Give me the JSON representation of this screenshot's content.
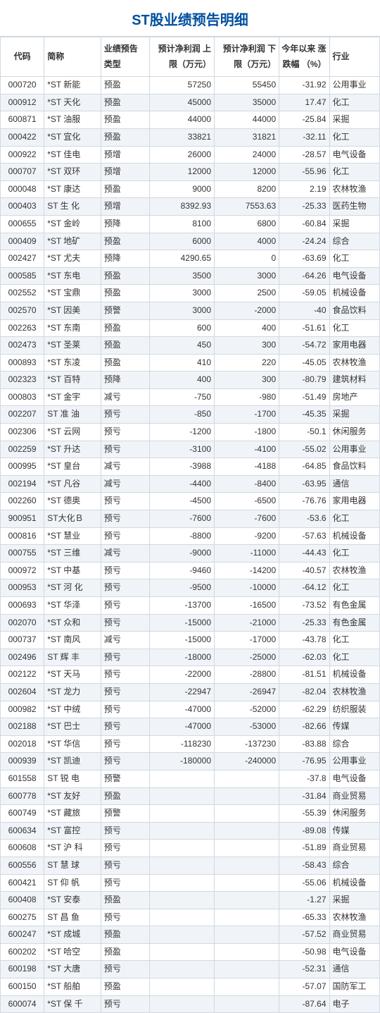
{
  "title": "ST股业绩预告明细",
  "headers": {
    "code": "代码",
    "name": "简称",
    "type": "业绩预告\n类型",
    "upper": "预计净利润\n上限（万元）",
    "lower": "预计净利润\n下限（万元）",
    "chg": "今年以来\n涨跌幅\n（%）",
    "industry": "行业"
  },
  "rows": [
    {
      "code": "000720",
      "name": "*ST 新能",
      "type": "预盈",
      "upper": "57250",
      "lower": "55450",
      "chg": "-31.92",
      "ind": "公用事业"
    },
    {
      "code": "000912",
      "name": "*ST 天化",
      "type": "预盈",
      "upper": "45000",
      "lower": "35000",
      "chg": "17.47",
      "ind": "化工"
    },
    {
      "code": "600871",
      "name": "*ST 油服",
      "type": "预盈",
      "upper": "44000",
      "lower": "44000",
      "chg": "-25.84",
      "ind": "采掘"
    },
    {
      "code": "000422",
      "name": "*ST 宜化",
      "type": "预盈",
      "upper": "33821",
      "lower": "31821",
      "chg": "-32.11",
      "ind": "化工"
    },
    {
      "code": "000922",
      "name": "*ST 佳电",
      "type": "预增",
      "upper": "26000",
      "lower": "24000",
      "chg": "-28.57",
      "ind": "电气设备"
    },
    {
      "code": "000707",
      "name": "*ST 双环",
      "type": "预增",
      "upper": "12000",
      "lower": "12000",
      "chg": "-55.96",
      "ind": "化工"
    },
    {
      "code": "000048",
      "name": "*ST 康达",
      "type": "预盈",
      "upper": "9000",
      "lower": "8200",
      "chg": "2.19",
      "ind": "农林牧渔"
    },
    {
      "code": "000403",
      "name": "ST 生 化",
      "type": "预增",
      "upper": "8392.93",
      "lower": "7553.63",
      "chg": "-25.33",
      "ind": "医药生物"
    },
    {
      "code": "000655",
      "name": "*ST 金岭",
      "type": "预降",
      "upper": "8100",
      "lower": "6800",
      "chg": "-60.84",
      "ind": "采掘"
    },
    {
      "code": "000409",
      "name": "*ST 地矿",
      "type": "预盈",
      "upper": "6000",
      "lower": "4000",
      "chg": "-24.24",
      "ind": "综合"
    },
    {
      "code": "002427",
      "name": "*ST 尤夫",
      "type": "预降",
      "upper": "4290.65",
      "lower": "0",
      "chg": "-63.69",
      "ind": "化工"
    },
    {
      "code": "000585",
      "name": "*ST 东电",
      "type": "预盈",
      "upper": "3500",
      "lower": "3000",
      "chg": "-64.26",
      "ind": "电气设备"
    },
    {
      "code": "002552",
      "name": "*ST 宝鼎",
      "type": "预盈",
      "upper": "3000",
      "lower": "2500",
      "chg": "-59.05",
      "ind": "机械设备"
    },
    {
      "code": "002570",
      "name": "*ST 因美",
      "type": "预警",
      "upper": "3000",
      "lower": "-2000",
      "chg": "-40",
      "ind": "食品饮料"
    },
    {
      "code": "002263",
      "name": "*ST 东南",
      "type": "预盈",
      "upper": "600",
      "lower": "400",
      "chg": "-51.61",
      "ind": "化工"
    },
    {
      "code": "002473",
      "name": "*ST 圣莱",
      "type": "预盈",
      "upper": "450",
      "lower": "300",
      "chg": "-54.72",
      "ind": "家用电器"
    },
    {
      "code": "000893",
      "name": "*ST 东凌",
      "type": "预盈",
      "upper": "410",
      "lower": "220",
      "chg": "-45.05",
      "ind": "农林牧渔"
    },
    {
      "code": "002323",
      "name": "*ST 百特",
      "type": "预降",
      "upper": "400",
      "lower": "300",
      "chg": "-80.79",
      "ind": "建筑材料"
    },
    {
      "code": "000803",
      "name": "*ST 金宇",
      "type": "减亏",
      "upper": "-750",
      "lower": "-980",
      "chg": "-51.49",
      "ind": "房地产"
    },
    {
      "code": "002207",
      "name": "ST 准 油",
      "type": "预亏",
      "upper": "-850",
      "lower": "-1700",
      "chg": "-45.35",
      "ind": "采掘"
    },
    {
      "code": "002306",
      "name": "*ST 云网",
      "type": "预亏",
      "upper": "-1200",
      "lower": "-1800",
      "chg": "-50.1",
      "ind": "休闲服务"
    },
    {
      "code": "002259",
      "name": "*ST 升达",
      "type": "预亏",
      "upper": "-3100",
      "lower": "-4100",
      "chg": "-55.02",
      "ind": "公用事业"
    },
    {
      "code": "000995",
      "name": "*ST 皇台",
      "type": "减亏",
      "upper": "-3988",
      "lower": "-4188",
      "chg": "-64.85",
      "ind": "食品饮料"
    },
    {
      "code": "002194",
      "name": "*ST 凡谷",
      "type": "减亏",
      "upper": "-4400",
      "lower": "-8400",
      "chg": "-63.95",
      "ind": "通信"
    },
    {
      "code": "002260",
      "name": "*ST 德奥",
      "type": "预亏",
      "upper": "-4500",
      "lower": "-6500",
      "chg": "-76.76",
      "ind": "家用电器"
    },
    {
      "code": "900951",
      "name": "ST大化Ｂ",
      "type": "预亏",
      "upper": "-7600",
      "lower": "-7600",
      "chg": "-53.6",
      "ind": "化工"
    },
    {
      "code": "000816",
      "name": "*ST 慧业",
      "type": "预亏",
      "upper": "-8800",
      "lower": "-9200",
      "chg": "-57.63",
      "ind": "机械设备"
    },
    {
      "code": "000755",
      "name": "*ST 三维",
      "type": "减亏",
      "upper": "-9000",
      "lower": "-11000",
      "chg": "-44.43",
      "ind": "化工"
    },
    {
      "code": "000972",
      "name": "*ST 中基",
      "type": "预亏",
      "upper": "-9460",
      "lower": "-14200",
      "chg": "-40.57",
      "ind": "农林牧渔"
    },
    {
      "code": "000953",
      "name": "*ST 河 化",
      "type": "预亏",
      "upper": "-9500",
      "lower": "-10000",
      "chg": "-64.12",
      "ind": "化工"
    },
    {
      "code": "000693",
      "name": "*ST 华泽",
      "type": "预亏",
      "upper": "-13700",
      "lower": "-16500",
      "chg": "-73.52",
      "ind": "有色金属"
    },
    {
      "code": "002070",
      "name": "*ST 众和",
      "type": "预亏",
      "upper": "-15000",
      "lower": "-21000",
      "chg": "-25.33",
      "ind": "有色金属"
    },
    {
      "code": "000737",
      "name": "*ST 南风",
      "type": "减亏",
      "upper": "-15000",
      "lower": "-17000",
      "chg": "-43.78",
      "ind": "化工"
    },
    {
      "code": "002496",
      "name": "ST 辉 丰",
      "type": "预亏",
      "upper": "-18000",
      "lower": "-25000",
      "chg": "-62.03",
      "ind": "化工"
    },
    {
      "code": "002122",
      "name": "*ST 天马",
      "type": "预亏",
      "upper": "-22000",
      "lower": "-28800",
      "chg": "-81.51",
      "ind": "机械设备"
    },
    {
      "code": "002604",
      "name": "*ST 龙力",
      "type": "预亏",
      "upper": "-22947",
      "lower": "-26947",
      "chg": "-82.04",
      "ind": "农林牧渔"
    },
    {
      "code": "000982",
      "name": "*ST 中绒",
      "type": "预亏",
      "upper": "-47000",
      "lower": "-52000",
      "chg": "-62.29",
      "ind": "纺织服装"
    },
    {
      "code": "002188",
      "name": "*ST 巴士",
      "type": "预亏",
      "upper": "-47000",
      "lower": "-53000",
      "chg": "-82.66",
      "ind": "传媒"
    },
    {
      "code": "002018",
      "name": "*ST 华信",
      "type": "预亏",
      "upper": "-118230",
      "lower": "-137230",
      "chg": "-83.88",
      "ind": "综合"
    },
    {
      "code": "000939",
      "name": "*ST 凯迪",
      "type": "预亏",
      "upper": "-180000",
      "lower": "-240000",
      "chg": "-76.95",
      "ind": "公用事业"
    },
    {
      "code": "601558",
      "name": "ST 锐 电",
      "type": "预警",
      "upper": "",
      "lower": "",
      "chg": "-37.8",
      "ind": "电气设备"
    },
    {
      "code": "600778",
      "name": "*ST 友好",
      "type": "预盈",
      "upper": "",
      "lower": "",
      "chg": "-31.84",
      "ind": "商业贸易"
    },
    {
      "code": "600749",
      "name": "*ST 藏旅",
      "type": "预警",
      "upper": "",
      "lower": "",
      "chg": "-55.39",
      "ind": "休闲服务"
    },
    {
      "code": "600634",
      "name": "*ST 富控",
      "type": "预亏",
      "upper": "",
      "lower": "",
      "chg": "-89.08",
      "ind": "传媒"
    },
    {
      "code": "600608",
      "name": "*ST 沪 科",
      "type": "预亏",
      "upper": "",
      "lower": "",
      "chg": "-51.89",
      "ind": "商业贸易"
    },
    {
      "code": "600556",
      "name": "ST 慧 球",
      "type": "预亏",
      "upper": "",
      "lower": "",
      "chg": "-58.43",
      "ind": "综合"
    },
    {
      "code": "600421",
      "name": "ST 仰 帆",
      "type": "预亏",
      "upper": "",
      "lower": "",
      "chg": "-55.06",
      "ind": "机械设备"
    },
    {
      "code": "600408",
      "name": "*ST 安泰",
      "type": "预盈",
      "upper": "",
      "lower": "",
      "chg": "-1.27",
      "ind": "采掘"
    },
    {
      "code": "600275",
      "name": "ST 昌 鱼",
      "type": "预亏",
      "upper": "",
      "lower": "",
      "chg": "-65.33",
      "ind": "农林牧渔"
    },
    {
      "code": "600247",
      "name": "*ST 成城",
      "type": "预盈",
      "upper": "",
      "lower": "",
      "chg": "-57.52",
      "ind": "商业贸易"
    },
    {
      "code": "600202",
      "name": "*ST 哈空",
      "type": "预盈",
      "upper": "",
      "lower": "",
      "chg": "-50.98",
      "ind": "电气设备"
    },
    {
      "code": "600198",
      "name": "*ST 大唐",
      "type": "预亏",
      "upper": "",
      "lower": "",
      "chg": "-52.31",
      "ind": "通信"
    },
    {
      "code": "600150",
      "name": "*ST 船舶",
      "type": "预盈",
      "upper": "",
      "lower": "",
      "chg": "-57.07",
      "ind": "国防军工"
    },
    {
      "code": "600074",
      "name": "*ST 保 千",
      "type": "预亏",
      "upper": "",
      "lower": "",
      "chg": "-87.64",
      "ind": "电子"
    }
  ]
}
